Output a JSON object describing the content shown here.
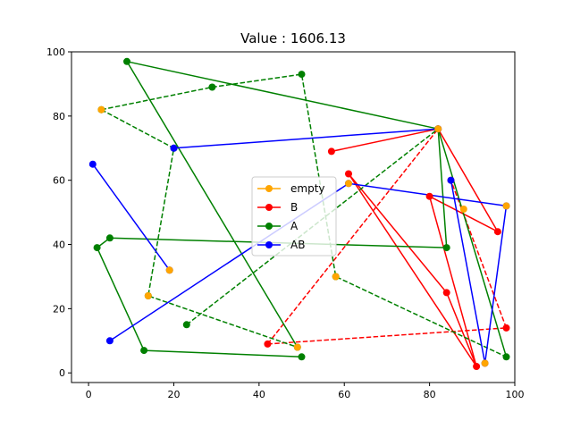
{
  "chart_data": {
    "type": "line",
    "title": "Value : 1606.13",
    "xlim": [
      -4,
      100
    ],
    "ylim": [
      -3,
      100
    ],
    "xticks": [
      0,
      20,
      40,
      60,
      80,
      100
    ],
    "yticks": [
      0,
      20,
      40,
      60,
      80,
      100
    ],
    "grid": false,
    "legend_position": "center",
    "legend": [
      "empty",
      "B",
      "A",
      "AB"
    ],
    "colors": {
      "empty": "#ffa500",
      "B": "#ff0000",
      "A": "#008000",
      "AB": "#0000ff"
    },
    "series": [
      {
        "name": "empty",
        "color": "#ffa500",
        "segments": [],
        "points": [
          [
            3,
            82
          ],
          [
            19,
            32
          ],
          [
            14,
            24
          ],
          [
            49,
            8
          ],
          [
            58,
            30
          ],
          [
            61,
            59
          ],
          [
            82,
            76
          ],
          [
            88,
            51
          ],
          [
            93,
            3
          ],
          [
            98,
            52
          ]
        ]
      },
      {
        "name": "B",
        "color": "#ff0000",
        "segments": [
          {
            "style": "solid",
            "points": [
              [
                57,
                69
              ],
              [
                82,
                76
              ],
              [
                96,
                44
              ],
              [
                80,
                55
              ],
              [
                91,
                2
              ],
              [
                61,
                62
              ],
              [
                84,
                25
              ],
              [
                91,
                2
              ]
            ]
          },
          {
            "style": "dashed",
            "points": [
              [
                42,
                9
              ],
              [
                82,
                76
              ]
            ]
          },
          {
            "style": "dashed",
            "points": [
              [
                42,
                9
              ],
              [
                98,
                14
              ]
            ]
          },
          {
            "style": "dashed",
            "points": [
              [
                98,
                14
              ],
              [
                85,
                60
              ]
            ]
          }
        ]
      },
      {
        "name": "A",
        "color": "#008000",
        "segments": [
          {
            "style": "solid",
            "points": [
              [
                9,
                97
              ],
              [
                82,
                76
              ],
              [
                84,
                39
              ],
              [
                5,
                42
              ],
              [
                2,
                39
              ],
              [
                13,
                7
              ],
              [
                50,
                5
              ]
            ]
          },
          {
            "style": "solid",
            "points": [
              [
                9,
                97
              ],
              [
                49,
                8
              ]
            ]
          },
          {
            "style": "solid",
            "points": [
              [
                82,
                76
              ],
              [
                98,
                5
              ]
            ]
          },
          {
            "style": "dashed",
            "points": [
              [
                3,
                82
              ],
              [
                29,
                89
              ],
              [
                50,
                93
              ],
              [
                58,
                30
              ],
              [
                98,
                5
              ]
            ]
          },
          {
            "style": "dashed",
            "points": [
              [
                3,
                82
              ],
              [
                20,
                70
              ],
              [
                14,
                24
              ],
              [
                49,
                8
              ]
            ]
          },
          {
            "style": "dashed",
            "points": [
              [
                23,
                15
              ],
              [
                82,
                76
              ]
            ]
          }
        ]
      },
      {
        "name": "AB",
        "color": "#0000ff",
        "segments": [
          {
            "style": "solid",
            "points": [
              [
                20,
                70
              ],
              [
                82,
                76
              ]
            ]
          },
          {
            "style": "solid",
            "points": [
              [
                1,
                65
              ],
              [
                19,
                32
              ]
            ]
          },
          {
            "style": "solid",
            "points": [
              [
                5,
                10
              ],
              [
                61,
                59
              ],
              [
                98,
                52
              ],
              [
                93,
                3
              ],
              [
                85,
                60
              ]
            ]
          }
        ]
      }
    ]
  }
}
